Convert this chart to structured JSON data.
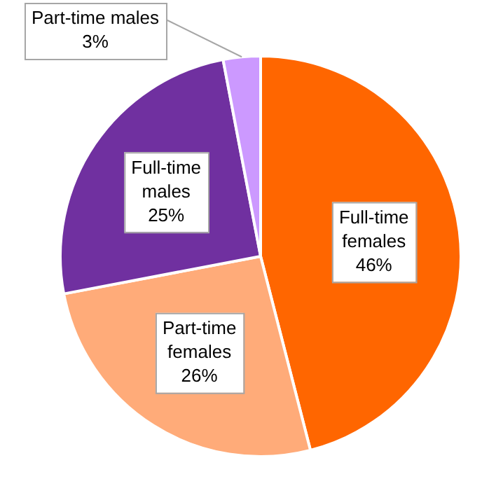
{
  "chart_data": {
    "type": "pie",
    "categories": [
      "Full-time females",
      "Part-time females",
      "Full-time males",
      "Part-time males"
    ],
    "values": [
      46,
      26,
      25,
      3
    ],
    "colors": [
      "#ff6600",
      "#ffab79",
      "#7030a0",
      "#cc99ff"
    ],
    "value_labels": [
      "46%",
      "26%",
      "25%",
      "3%"
    ],
    "legend": false
  }
}
